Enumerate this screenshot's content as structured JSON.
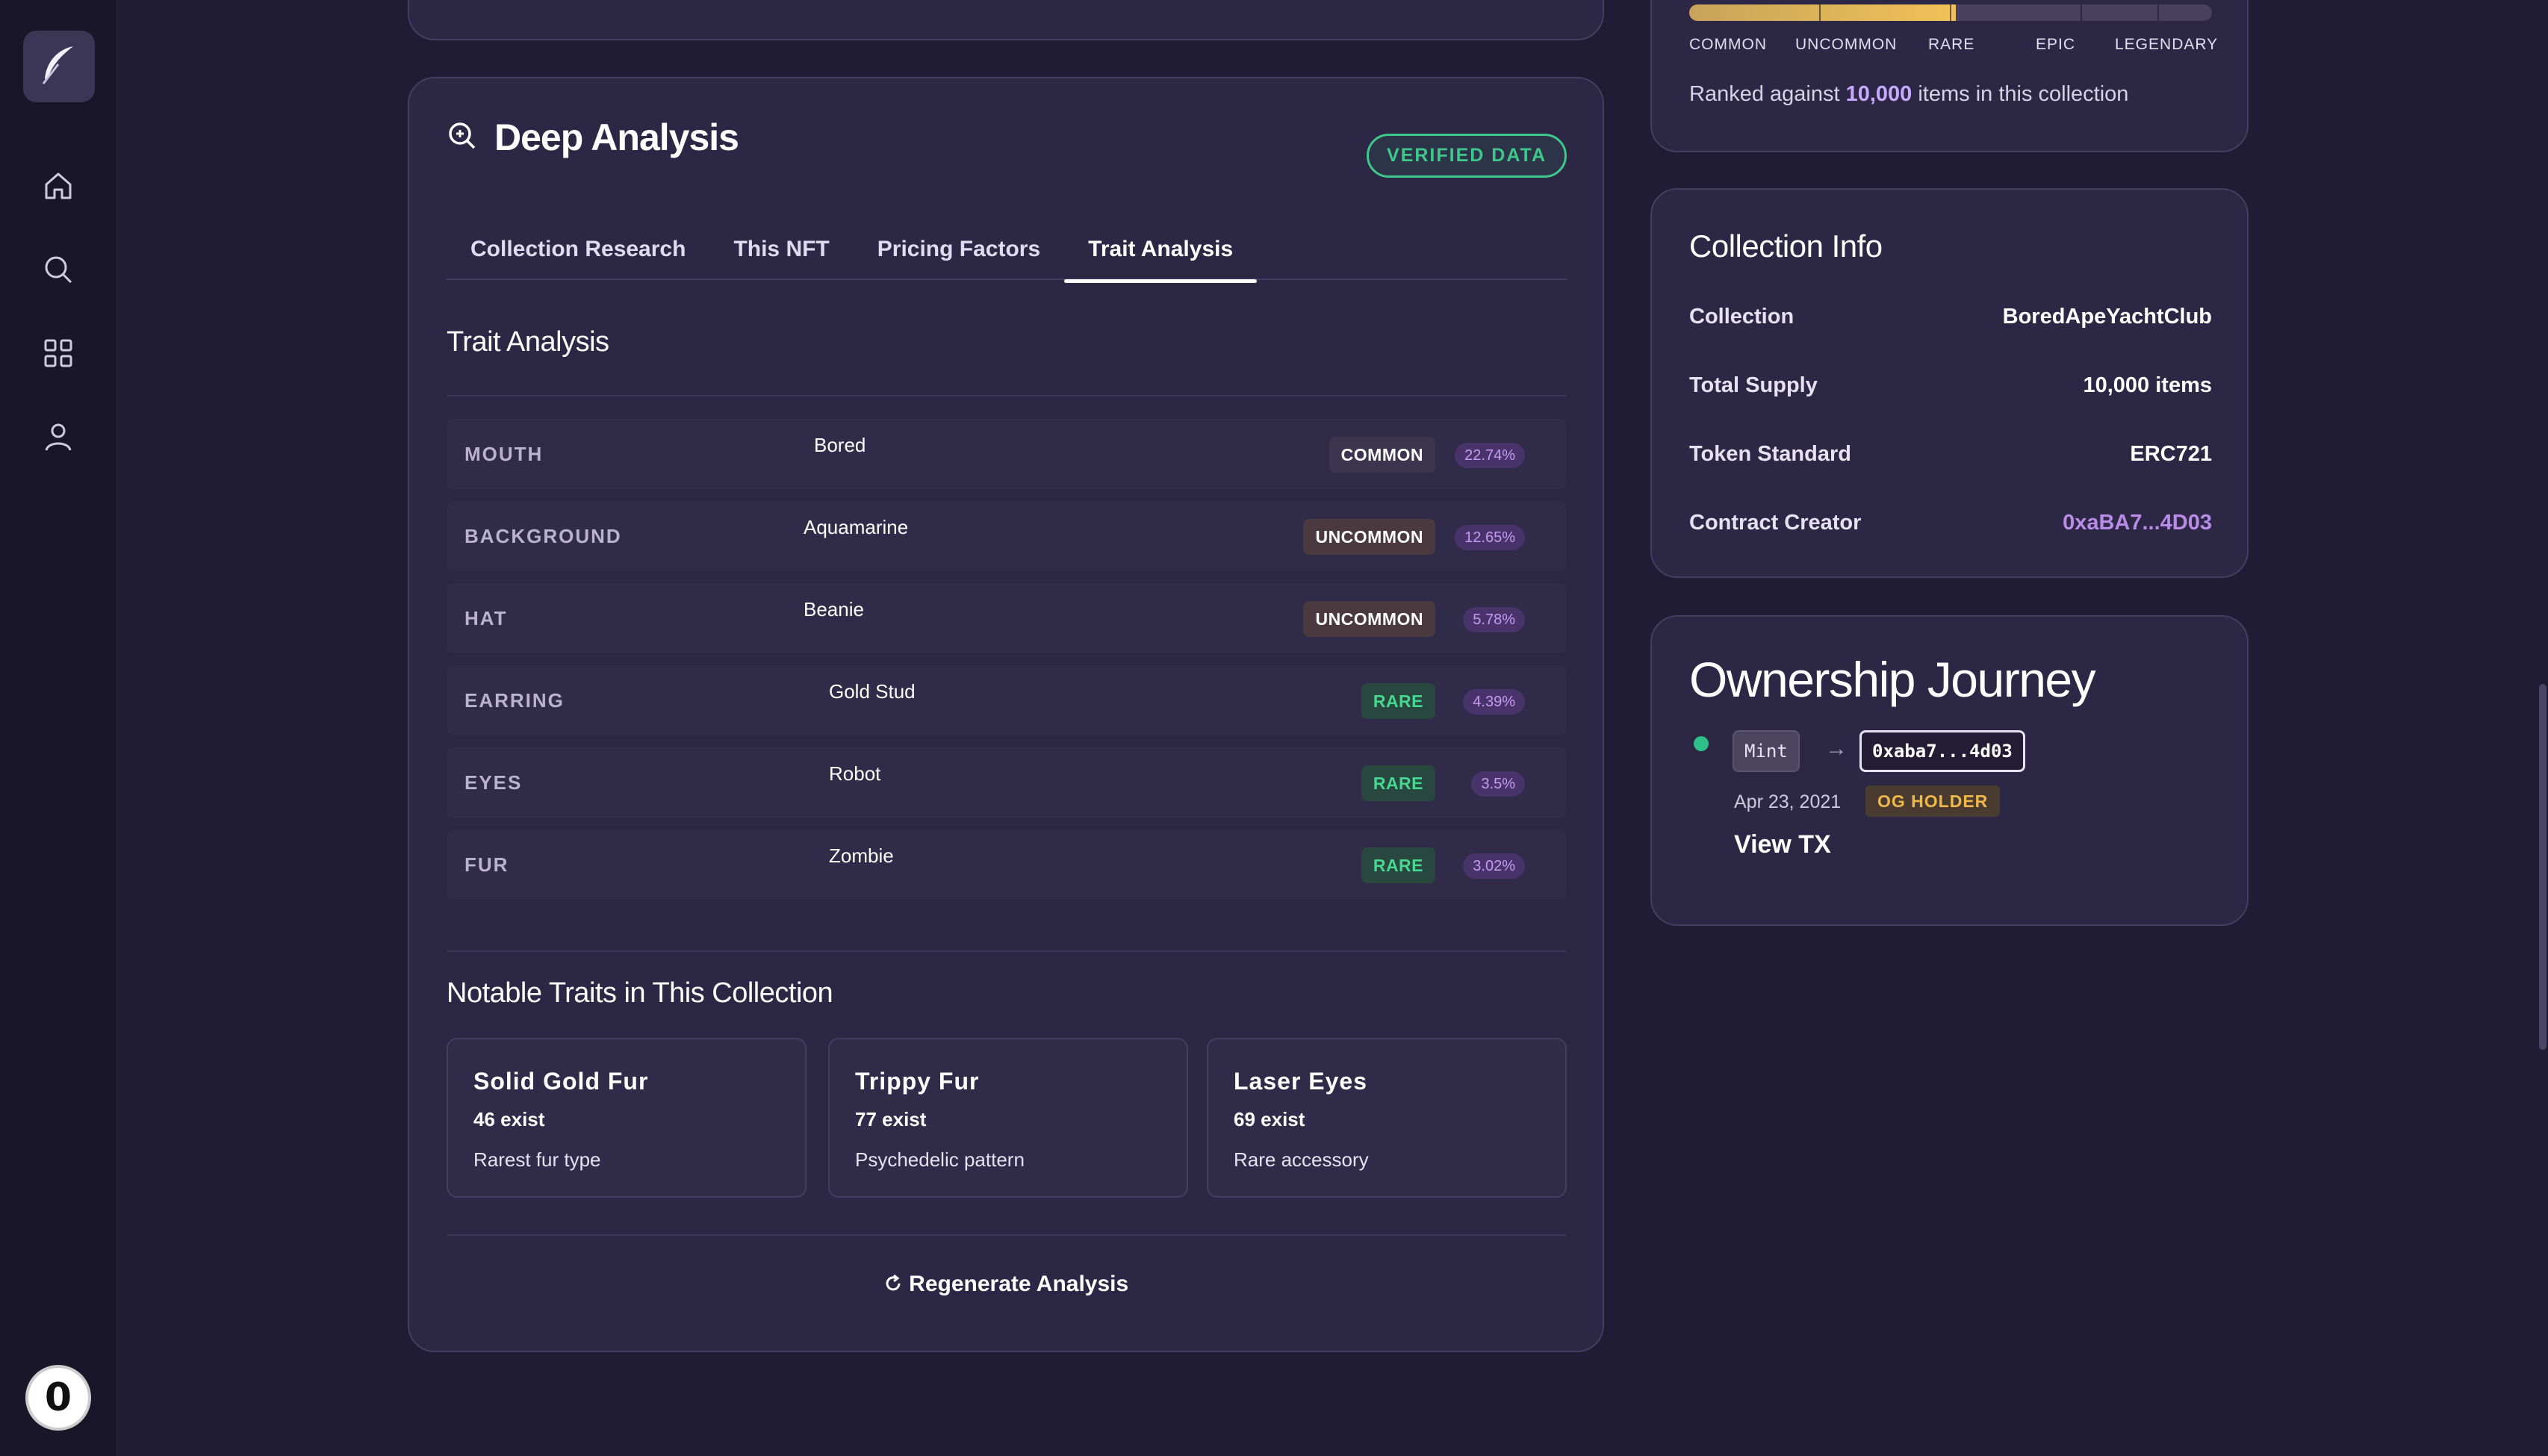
{
  "sidebar": {
    "logo": "feather-logo-icon",
    "nav": [
      "home-icon",
      "search-icon",
      "grid-icon",
      "user-icon"
    ],
    "bottom_badge": "0"
  },
  "deep_analysis": {
    "title": "Deep Analysis",
    "verified_label": "VERIFIED DATA",
    "tabs": [
      {
        "label": "Collection Research"
      },
      {
        "label": "This NFT"
      },
      {
        "label": "Pricing Factors"
      },
      {
        "label": "Trait Analysis"
      }
    ],
    "active_tab": "Trait Analysis",
    "section_title": "Trait Analysis",
    "traits": [
      {
        "key": "MOUTH",
        "value": "Bored",
        "rarity": "COMMON",
        "pct": "22.74%"
      },
      {
        "key": "BACKGROUND",
        "value": "Aquamarine",
        "rarity": "UNCOMMON",
        "pct": "12.65%"
      },
      {
        "key": "HAT",
        "value": "Beanie",
        "rarity": "UNCOMMON",
        "pct": "5.78%"
      },
      {
        "key": "EARRING",
        "value": "Gold Stud",
        "rarity": "RARE",
        "pct": "4.39%"
      },
      {
        "key": "EYES",
        "value": "Robot",
        "rarity": "RARE",
        "pct": "3.5%"
      },
      {
        "key": "FUR",
        "value": "Zombie",
        "rarity": "RARE",
        "pct": "3.02%"
      }
    ],
    "notable_title": "Notable Traits in This Collection",
    "notable": [
      {
        "name": "Solid Gold Fur",
        "count": "46 exist",
        "desc": "Rarest fur type"
      },
      {
        "name": "Trippy Fur",
        "count": "77 exist",
        "desc": "Psychedelic pattern"
      },
      {
        "name": "Laser Eyes",
        "count": "69 exist",
        "desc": "Rare accessory"
      }
    ],
    "regenerate_label": "Regenerate Analysis"
  },
  "rarity": {
    "labels": [
      "COMMON",
      "UNCOMMON",
      "RARE",
      "EPIC",
      "LEGENDARY"
    ],
    "fill_fraction": 0.51,
    "ranked_prefix": "Ranked against ",
    "ranked_count": "10,000",
    "ranked_suffix": " items in this collection"
  },
  "collection_info": {
    "title": "Collection Info",
    "rows": [
      {
        "label": "Collection",
        "value": "BoredApeYachtClub"
      },
      {
        "label": "Total Supply",
        "value": "10,000 items"
      },
      {
        "label": "Token Standard",
        "value": "ERC721"
      },
      {
        "label": "Contract Creator",
        "value": "0xaBA7...4D03"
      }
    ]
  },
  "ownership": {
    "title": "Ownership Journey",
    "from": "Mint",
    "to": "0xaba7...4d03",
    "date": "Apr 23, 2021",
    "badge": "OG HOLDER",
    "link": "View TX"
  },
  "colors": {
    "background": "#211c36",
    "card": "#2c2744",
    "accent_green": "#3ec98a",
    "accent_purple": "#b98ce8",
    "gold": "#f0c257"
  }
}
